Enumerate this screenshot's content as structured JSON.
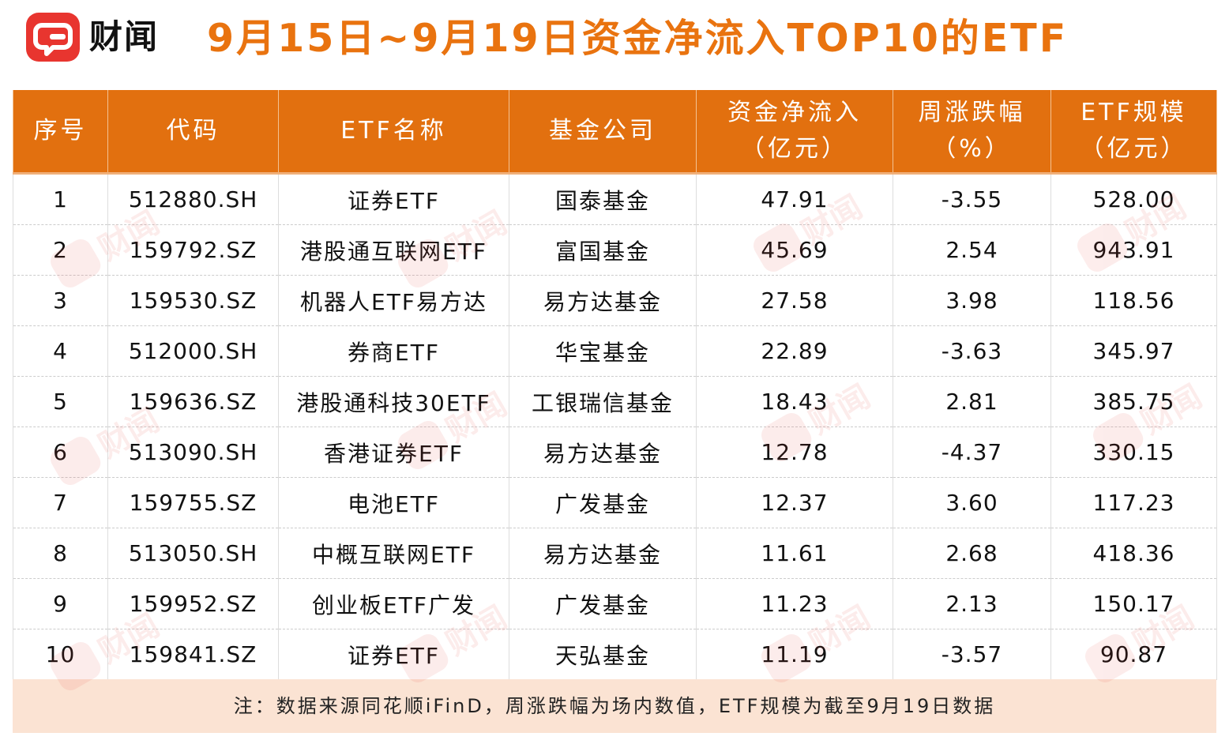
{
  "brand": {
    "name": "财闻",
    "color": "#e8352f",
    "icon": "chat-bubble-logo-icon"
  },
  "title": "9月15日~9月19日资金净流入TOP10的ETF",
  "accent_color": "#e2700f",
  "columns": [
    {
      "line1": "序号",
      "line2": ""
    },
    {
      "line1": "代码",
      "line2": ""
    },
    {
      "line1": "ETF名称",
      "line2": ""
    },
    {
      "line1": "基金公司",
      "line2": ""
    },
    {
      "line1": "资金净流入",
      "line2": "（亿元）"
    },
    {
      "line1": "周涨跌幅",
      "line2": "（%）"
    },
    {
      "line1": "ETF规模",
      "line2": "（亿元）"
    }
  ],
  "rows": [
    [
      "1",
      "512880.SH",
      "证券ETF",
      "国泰基金",
      "47.91",
      "-3.55",
      "528.00"
    ],
    [
      "2",
      "159792.SZ",
      "港股通互联网ETF",
      "富国基金",
      "45.69",
      "2.54",
      "943.91"
    ],
    [
      "3",
      "159530.SZ",
      "机器人ETF易方达",
      "易方达基金",
      "27.58",
      "3.98",
      "118.56"
    ],
    [
      "4",
      "512000.SH",
      "券商ETF",
      "华宝基金",
      "22.89",
      "-3.63",
      "345.97"
    ],
    [
      "5",
      "159636.SZ",
      "港股通科技30ETF",
      "工银瑞信基金",
      "18.43",
      "2.81",
      "385.75"
    ],
    [
      "6",
      "513090.SH",
      "香港证券ETF",
      "易方达基金",
      "12.78",
      "-4.37",
      "330.15"
    ],
    [
      "7",
      "159755.SZ",
      "电池ETF",
      "广发基金",
      "12.37",
      "3.60",
      "117.23"
    ],
    [
      "8",
      "513050.SH",
      "中概互联网ETF",
      "易方达基金",
      "11.61",
      "2.68",
      "418.36"
    ],
    [
      "9",
      "159952.SZ",
      "创业板ETF广发",
      "广发基金",
      "11.23",
      "2.13",
      "150.17"
    ],
    [
      "10",
      "159841.SZ",
      "证券ETF",
      "天弘基金",
      "11.19",
      "-3.57",
      "90.87"
    ]
  ],
  "footnote": "注：数据来源同花顺iFinD，周涨跌幅为场内数值，ETF规模为截至9月19日数据",
  "watermark": "财闻"
}
